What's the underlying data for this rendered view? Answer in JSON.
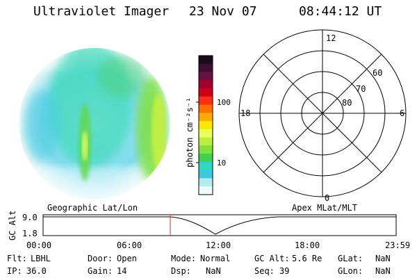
{
  "header": {
    "instrument": "Ultraviolet Imager",
    "date": "23 Nov 07",
    "time": "08:44:12 UT"
  },
  "colorbar": {
    "label": "photon cm⁻²s⁻¹",
    "ticks": [
      "100",
      "10"
    ],
    "colors": [
      "#1a0a1a",
      "#3c1035",
      "#6a1040",
      "#a00030",
      "#d00018",
      "#ff3010",
      "#ff7000",
      "#ffaa00",
      "#ffe800",
      "#e8ff60",
      "#b8f040",
      "#80e040",
      "#40d050",
      "#30d8c0",
      "#40c8e0",
      "#b0ecf0",
      "#f0fafa"
    ]
  },
  "polar": {
    "mlt_labels": [
      "12",
      "18",
      "6",
      "0"
    ],
    "mlat_labels": [
      "60",
      "70",
      "80"
    ]
  },
  "timeline": {
    "left_label": "Geographic Lat/Lon",
    "right_label": "Apex MLat/MLT",
    "y_axis_label": "GC Alt",
    "y_ticks": [
      "9.0",
      "1.8"
    ],
    "x_ticks": [
      "00:00",
      "06:00",
      "12:00",
      "18:00",
      "23:59"
    ],
    "marker_time": "08:44:12"
  },
  "info": {
    "flt_label": "Flt:",
    "flt_value": "LBHL",
    "ip_label": "IP:",
    "ip_value": "36.0",
    "door_label": "Door:",
    "door_value": "Open",
    "gain_label": "Gain:",
    "gain_value": "14",
    "mode_label": "Mode:",
    "mode_value": "Normal",
    "dsp_label": "Dsp:",
    "dsp_value": "NaN",
    "gcalt_label": "GC Alt:",
    "gcalt_value": "5.6 Re",
    "seq_label": "Seq:",
    "seq_value": "39",
    "glat_label": "GLat:",
    "glat_value": "NaN",
    "glon_label": "GLon:",
    "glon_value": "NaN"
  },
  "colors": {
    "marker": "#ff2020",
    "axis": "#000000"
  }
}
